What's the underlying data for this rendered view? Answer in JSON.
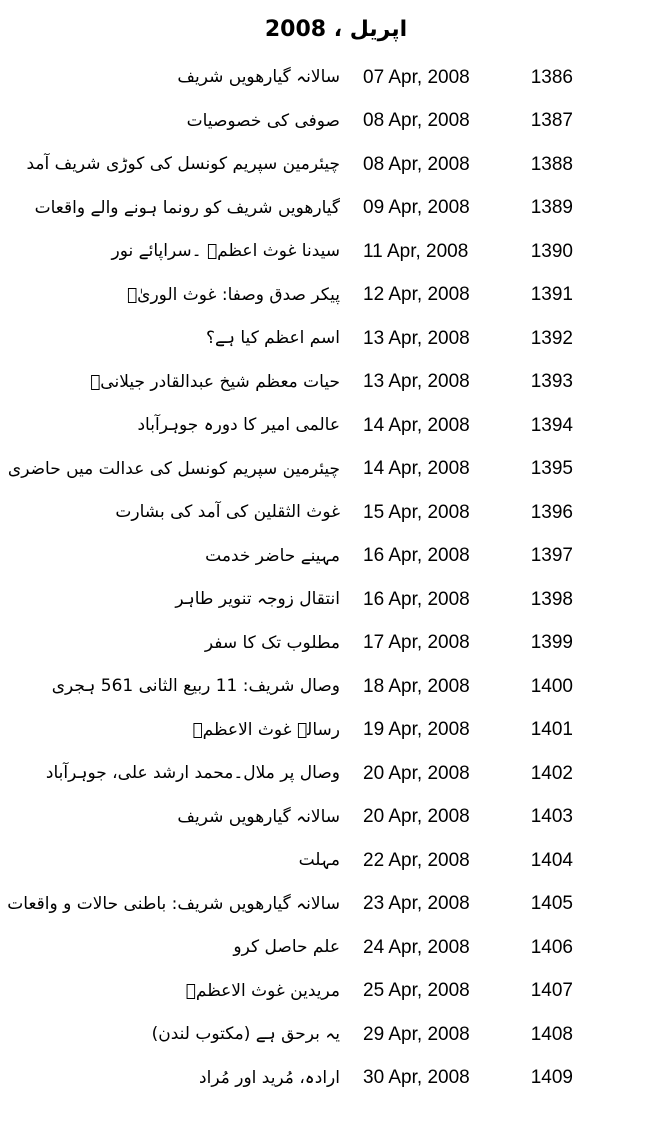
{
  "header": {
    "title": "اپریل ، 2008"
  },
  "colors": {
    "background": "#ffffff",
    "text": "#000000"
  },
  "list": {
    "columns": [
      "title",
      "date",
      "number"
    ],
    "rows": [
      {
        "title": "سالانہ گیارھویں شریف",
        "date": "07 Apr, 2008",
        "number": "1386"
      },
      {
        "title": "صوفی کی خصوصیات",
        "date": "08 Apr, 2008",
        "number": "1387"
      },
      {
        "title": "چیئرمین سپریم کونسل کی کوڑی شریف آمد",
        "date": "08 Apr, 2008",
        "number": "1388"
      },
      {
        "title": "گیارھویں شریف کو رونما ہونے والے واقعات",
        "date": "09 Apr, 2008",
        "number": "1389"
      },
      {
        "title": "سیدنا غوث اعظمؓ ۔سراپائے نور",
        "date": "11 Apr, 2008",
        "number": "1390"
      },
      {
        "title": "پیکر صدق وصفا: غوث الوریٰؓ",
        "date": "12 Apr, 2008",
        "number": "1391"
      },
      {
        "title": "اسم اعظم کیا ہے؟",
        "date": "13 Apr, 2008",
        "number": "1392"
      },
      {
        "title": "حیات معظم شیخ عبدالقادر جیلانیؒ",
        "date": "13 Apr, 2008",
        "number": "1393"
      },
      {
        "title": "عالمی امیر کا دورہ جوہرآباد",
        "date": "14 Apr, 2008",
        "number": "1394"
      },
      {
        "title": "چیئرمین سپریم کونسل کی عدالت میں حاضری",
        "date": "14 Apr, 2008",
        "number": "1395"
      },
      {
        "title": "غوث الثقلین کی آمد کی بشارت",
        "date": "15 Apr, 2008",
        "number": "1396"
      },
      {
        "title": "مہینے حاضر خدمت",
        "date": "16 Apr, 2008",
        "number": "1397"
      },
      {
        "title": "انتقال زوجہ تنویر طاہر",
        "date": "16 Apr, 2008",
        "number": "1398"
      },
      {
        "title": "مطلوب تک کا سفر",
        "date": "17 Apr, 2008",
        "number": "1399"
      },
      {
        "title": "وصال شریف: 11 ربیع الثانی 561 ہجری",
        "date": "18 Apr, 2008",
        "number": "1400"
      },
      {
        "title": "رسالہ غوث الاعظمؓ",
        "date": "19 Apr, 2008",
        "number": "1401"
      },
      {
        "title": "وصال پر ملال۔محمد ارشد علی، جوہرآباد",
        "date": "20 Apr, 2008",
        "number": "1402"
      },
      {
        "title": "سالانہ گیارھویں شریف",
        "date": "20 Apr, 2008",
        "number": "1403"
      },
      {
        "title": "مہلت",
        "date": "22 Apr, 2008",
        "number": "1404"
      },
      {
        "title": "سالانہ گیارھویں شریف: باطنی حالات و واقعات",
        "date": "23 Apr, 2008",
        "number": "1405"
      },
      {
        "title": "علم حاصل کرو",
        "date": "24 Apr, 2008",
        "number": "1406"
      },
      {
        "title": "مریدین غوث الاعظمؓ",
        "date": "25 Apr, 2008",
        "number": "1407"
      },
      {
        "title": "یہ برحق ہے (مکتوب لندن)",
        "date": "29 Apr, 2008",
        "number": "1408"
      },
      {
        "title": "ارادہ، مُرید اور مُراد",
        "date": "30 Apr, 2008",
        "number": "1409"
      }
    ]
  }
}
